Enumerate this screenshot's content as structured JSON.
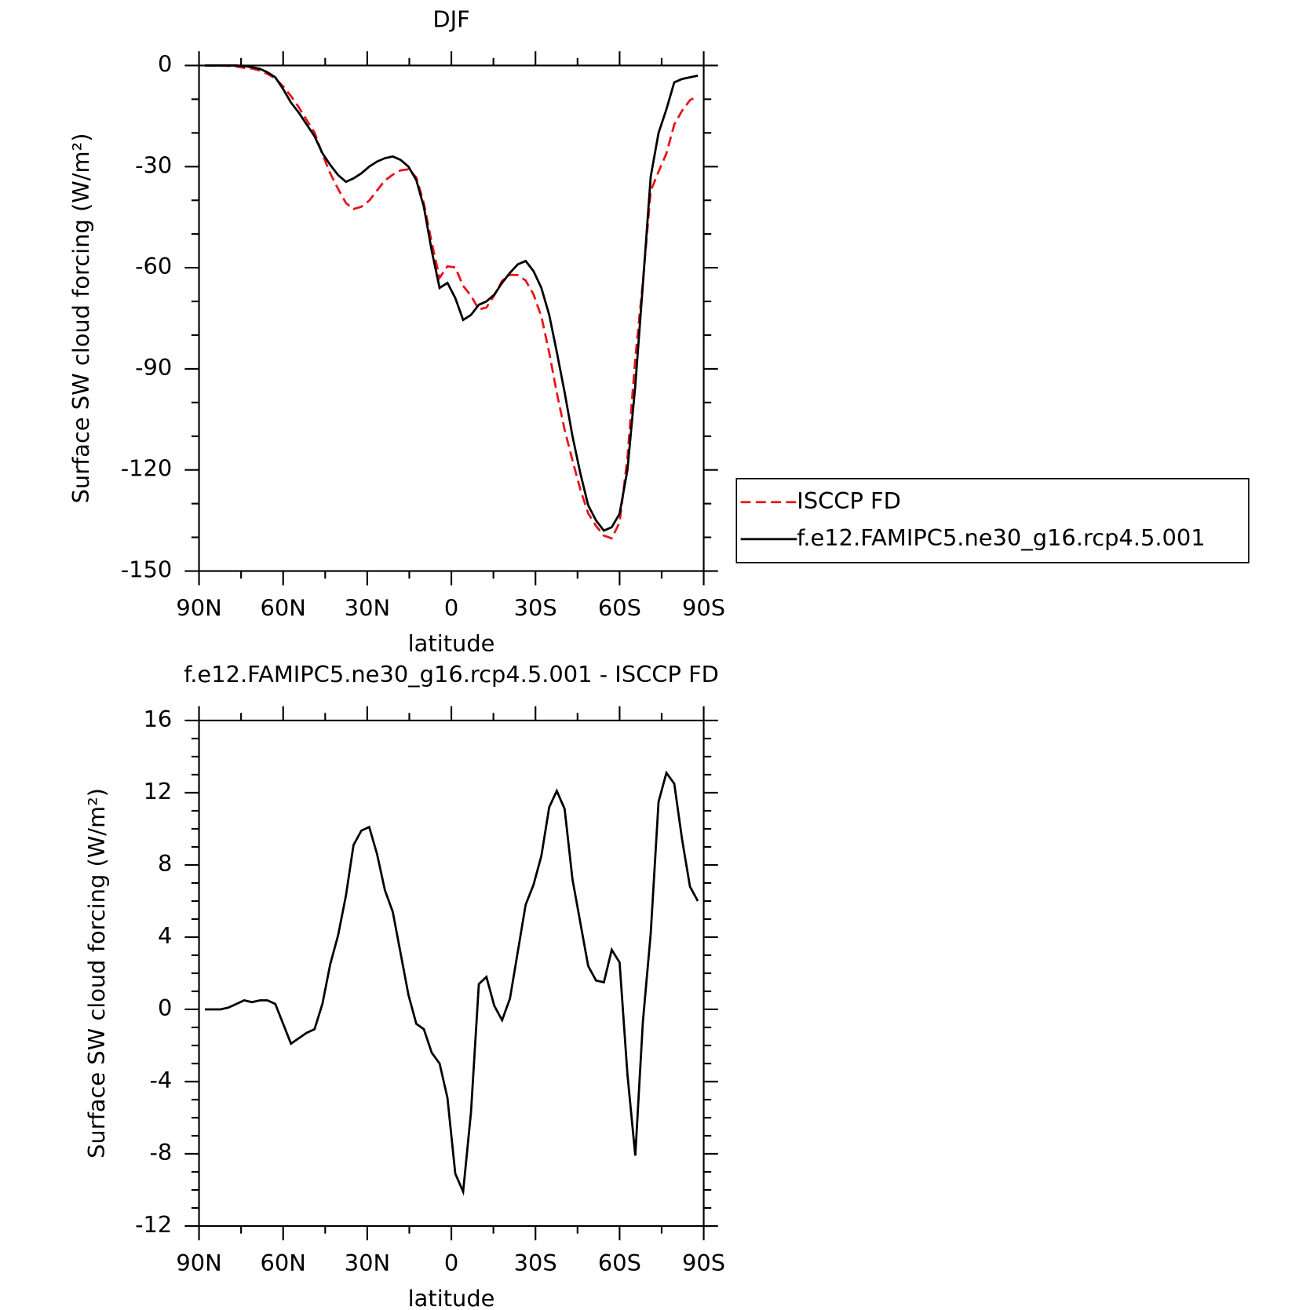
{
  "chart_data": [
    {
      "type": "line",
      "title": "DJF",
      "xlabel": "latitude",
      "ylabel": "Surface SW cloud forcing (W/m²)",
      "x": [
        87.9,
        85.1,
        82.3,
        79.5,
        76.7,
        73.9,
        71.1,
        68.3,
        65.6,
        62.8,
        60.0,
        57.2,
        54.4,
        51.6,
        48.8,
        46.0,
        43.2,
        40.4,
        37.6,
        34.9,
        32.1,
        29.3,
        26.5,
        23.7,
        20.9,
        18.1,
        15.3,
        12.5,
        9.8,
        7.0,
        4.2,
        1.4,
        -1.4,
        -4.2,
        -7.0,
        -9.8,
        -12.5,
        -15.3,
        -18.1,
        -20.9,
        -23.7,
        -26.5,
        -29.3,
        -32.1,
        -34.9,
        -37.6,
        -40.4,
        -43.2,
        -46.0,
        -48.8,
        -51.6,
        -54.4,
        -57.2,
        -60.0,
        -62.8,
        -65.6,
        -68.3,
        -71.1,
        -73.9,
        -76.7,
        -79.5,
        -82.3,
        -85.1,
        -87.9
      ],
      "series": [
        {
          "name": "ISCCP FD",
          "color": "#e8141b",
          "linestyle": "dashed",
          "values": [
            0,
            0,
            0,
            -0.1,
            -0.3,
            -0.7,
            -0.9,
            -1.5,
            -2.5,
            -3.8,
            -6.2,
            -9.1,
            -12.4,
            -16.2,
            -19.9,
            -26.3,
            -32,
            -36.6,
            -40.8,
            -42.6,
            -41.9,
            -40.1,
            -37.1,
            -34.1,
            -32.4,
            -31.1,
            -30.8,
            -33.2,
            -40.9,
            -52.6,
            -63,
            -59.6,
            -59.9,
            -65.4,
            -68.3,
            -72.4,
            -71.8,
            -68.2,
            -63.9,
            -62.1,
            -62.2,
            -63.8,
            -67.9,
            -74.5,
            -85.2,
            -97.1,
            -108.1,
            -117.2,
            -125.8,
            -132.9,
            -136.6,
            -139.5,
            -140.3,
            -135.6,
            -116.4,
            -86.9,
            -64.3,
            -37.2,
            -31.5,
            -26.1,
            -17.5,
            -13.4,
            -10.3,
            -9
          ]
        },
        {
          "name": "f.e12.FAMIPC5.ne30_g16.rcp4.5.001",
          "color": "#000000",
          "linestyle": "solid",
          "values": [
            0,
            0,
            0,
            0,
            0,
            -0.2,
            -0.5,
            -1,
            -2,
            -3.5,
            -7,
            -11,
            -14,
            -17.5,
            -21,
            -26,
            -29.5,
            -32.5,
            -34.5,
            -33.5,
            -32,
            -30,
            -28.5,
            -27.5,
            -27,
            -28,
            -30,
            -34,
            -42,
            -55,
            -66,
            -64.5,
            -69,
            -75.5,
            -74,
            -71,
            -70,
            -68,
            -64.5,
            -61.5,
            -59,
            -58,
            -61,
            -66,
            -74,
            -85,
            -97,
            -110,
            -121,
            -130.5,
            -135,
            -138,
            -137,
            -133,
            -120,
            -95,
            -65,
            -33,
            -20,
            -13,
            -5,
            -4,
            -3.5,
            -3
          ]
        }
      ],
      "xlim": [
        90,
        -90
      ],
      "xticks": [
        {
          "value": 90,
          "label": "90N"
        },
        {
          "value": 60,
          "label": "60N"
        },
        {
          "value": 30,
          "label": "30N"
        },
        0,
        {
          "value": -30,
          "label": "30S"
        },
        {
          "value": -60,
          "label": "60S"
        },
        {
          "value": -90,
          "label": "90S"
        }
      ],
      "ylim": [
        -150,
        0
      ],
      "yticks": [
        0,
        -30,
        -60,
        -90,
        -120,
        -150
      ],
      "xminor": 2,
      "yminor": 3,
      "legend": "right"
    },
    {
      "type": "line",
      "title": "f.e12.FAMIPC5.ne30_g16.rcp4.5.001 - ISCCP FD",
      "xlabel": "latitude",
      "ylabel": "Surface SW cloud forcing (W/m²)",
      "x": [
        87.9,
        85.1,
        82.3,
        79.5,
        76.7,
        73.9,
        71.1,
        68.3,
        65.6,
        62.8,
        60.0,
        57.2,
        54.4,
        51.6,
        48.8,
        46.0,
        43.2,
        40.4,
        37.6,
        34.9,
        32.1,
        29.3,
        26.5,
        23.7,
        20.9,
        18.1,
        15.3,
        12.5,
        9.8,
        7.0,
        4.2,
        1.4,
        -1.4,
        -4.2,
        -7.0,
        -9.8,
        -12.5,
        -15.3,
        -18.1,
        -20.9,
        -23.7,
        -26.5,
        -29.3,
        -32.1,
        -34.9,
        -37.6,
        -40.4,
        -43.2,
        -46.0,
        -48.8,
        -51.6,
        -54.4,
        -57.2,
        -60.0,
        -62.8,
        -65.6,
        -68.3,
        -71.1,
        -73.9,
        -76.7,
        -79.5,
        -82.3,
        -85.1,
        -87.9
      ],
      "values": [
        0,
        0,
        0,
        0.1,
        0.3,
        0.5,
        0.4,
        0.5,
        0.5,
        0.3,
        -0.8,
        -1.9,
        -1.6,
        -1.3,
        -1.1,
        0.3,
        2.5,
        4.1,
        6.3,
        9.1,
        9.9,
        10.1,
        8.6,
        6.6,
        5.4,
        3.1,
        0.8,
        -0.8,
        -1.1,
        -2.4,
        -3.0,
        -4.9,
        -9.1,
        -10.1,
        -5.7,
        1.4,
        1.8,
        0.2,
        -0.6,
        0.6,
        3.2,
        5.8,
        6.9,
        8.5,
        11.2,
        12.1,
        11.1,
        7.2,
        4.8,
        2.4,
        1.6,
        1.5,
        3.3,
        2.6,
        -3.6,
        -8.1,
        -0.7,
        4.2,
        11.5,
        13.1,
        12.5,
        9.4,
        6.8,
        6.0
      ],
      "color": "#000000",
      "xlim": [
        90,
        -90
      ],
      "xticks": [
        {
          "value": 90,
          "label": "90N"
        },
        {
          "value": 60,
          "label": "60N"
        },
        {
          "value": 30,
          "label": "30N"
        },
        0,
        {
          "value": -30,
          "label": "30S"
        },
        {
          "value": -60,
          "label": "60S"
        },
        {
          "value": -90,
          "label": "90S"
        }
      ],
      "ylim": [
        -12,
        16
      ],
      "yticks": [
        16,
        12,
        8,
        4,
        0,
        -4,
        -8,
        -12
      ],
      "xminor": 2,
      "yminor": 4
    }
  ]
}
